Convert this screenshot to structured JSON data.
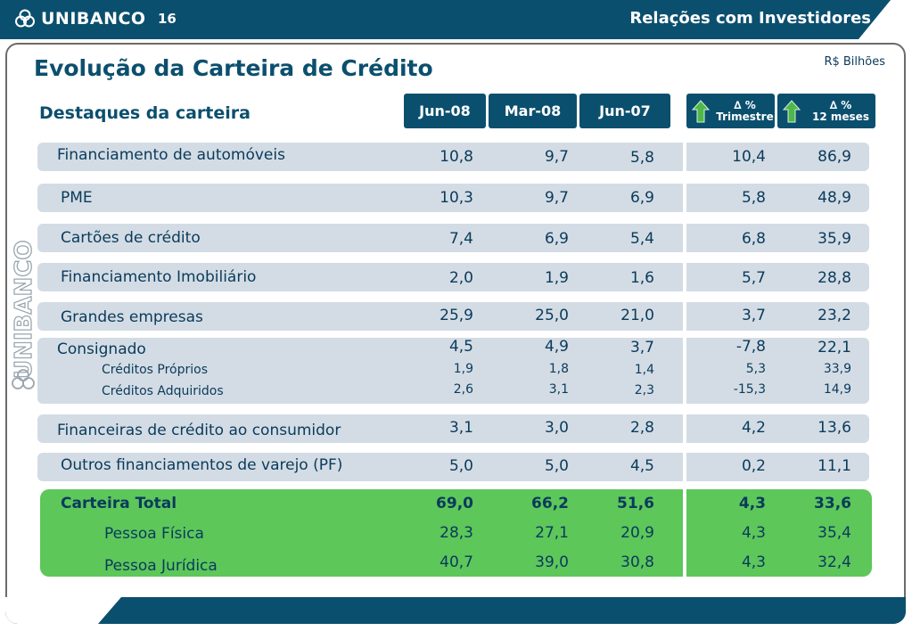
{
  "header": {
    "brand": "UNIBANCO",
    "page_number": "16",
    "section": "Relações com Investidores"
  },
  "title": "Evolução da Carteira de Crédito",
  "unit": "R$ Bilhões",
  "subtitle": "Destaques da carteira",
  "vertical_logo": "UNIBANCO",
  "columns": {
    "c1": "Jun-08",
    "c2": "Mar-08",
    "c3": "Jun-07",
    "d1_a": "∆ %",
    "d1_b": "Trimestre",
    "d2_a": "∆ %",
    "d2_b": "12 meses"
  },
  "rows": {
    "autos": {
      "label": "Financiamento de automóveis",
      "v": [
        "10,8",
        "9,7",
        "5,8",
        "10,4",
        "86,9"
      ]
    },
    "pme": {
      "label": "PME",
      "v": [
        "10,3",
        "9,7",
        "6,9",
        "5,8",
        "48,9"
      ]
    },
    "cartoes": {
      "label": "Cartões de crédito",
      "v": [
        "7,4",
        "6,9",
        "5,4",
        "6,8",
        "35,9"
      ]
    },
    "imob": {
      "label": "Financiamento Imobiliário",
      "v": [
        "2,0",
        "1,9",
        "1,6",
        "5,7",
        "28,8"
      ]
    },
    "grandes": {
      "label": "Grandes empresas",
      "v": [
        "25,9",
        "25,0",
        "21,0",
        "3,7",
        "23,2"
      ]
    },
    "consig": {
      "label": "Consignado",
      "v": [
        "4,5",
        "4,9",
        "3,7",
        "-7,8",
        "22,1"
      ]
    },
    "proprios": {
      "label": "Créditos Próprios",
      "v": [
        "1,9",
        "1,8",
        "1,4",
        "5,3",
        "33,9"
      ]
    },
    "adquiridos": {
      "label": "Créditos Adquiridos",
      "v": [
        "2,6",
        "3,1",
        "2,3",
        "-15,3",
        "14,9"
      ]
    },
    "financeiras": {
      "label": "Financeiras de crédito ao consumidor",
      "v": [
        "3,1",
        "3,0",
        "2,8",
        "4,2",
        "13,6"
      ]
    },
    "outros": {
      "label": "Outros financiamentos de varejo (PF)",
      "v": [
        "5,0",
        "5,0",
        "4,5",
        "0,2",
        "11,1"
      ]
    },
    "total": {
      "label": "Carteira Total",
      "v": [
        "69,0",
        "66,2",
        "51,6",
        "4,3",
        "33,6"
      ]
    },
    "pf": {
      "label": "Pessoa Física",
      "v": [
        "28,3",
        "27,1",
        "20,9",
        "4,3",
        "35,4"
      ]
    },
    "pj": {
      "label": "Pessoa Jurídica",
      "v": [
        "40,7",
        "39,0",
        "30,8",
        "4,3",
        "32,4"
      ]
    }
  },
  "colors": {
    "navy": "#0b4f6e",
    "band": "#d3dce4",
    "green": "#5dc75a"
  }
}
